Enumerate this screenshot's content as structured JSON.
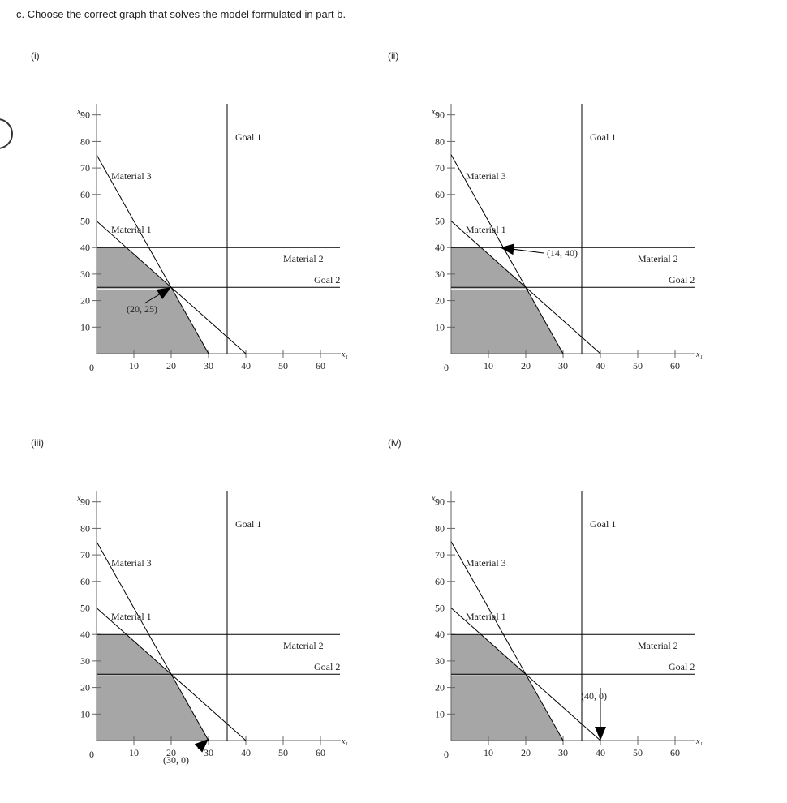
{
  "question": "c. Choose the correct graph that solves the model formulated in part b.",
  "axes": {
    "x_label": "x₁",
    "y_label": "x₂",
    "x_ticks": [
      "10",
      "20",
      "30",
      "40",
      "50",
      "60"
    ],
    "y_ticks": [
      "10",
      "20",
      "30",
      "40",
      "50",
      "60",
      "70",
      "80",
      "90"
    ],
    "origin_label": "0"
  },
  "line_labels": {
    "goal1": "Goal 1",
    "goal2": "Goal 2",
    "material1": "Material 1",
    "material2": "Material 2",
    "material3": "Material 3"
  },
  "options": [
    {
      "label": "(i)",
      "point_label": "(20, 25)"
    },
    {
      "label": "(ii)",
      "point_label": "(14, 40)"
    },
    {
      "label": "(iii)",
      "point_label": "(30, 0)"
    },
    {
      "label": "(iv)",
      "point_label": "(40, 0)"
    }
  ],
  "colors": {
    "shade": "#a6a6a6",
    "line": "#000000",
    "text": "#222222"
  },
  "chart_data": [
    {
      "type": "line",
      "title": "(i)",
      "xlabel": "x1",
      "ylabel": "x2",
      "xlim": [
        0,
        65
      ],
      "ylim": [
        0,
        90
      ],
      "lines": [
        {
          "name": "Goal 1",
          "kind": "vertical",
          "x": 35
        },
        {
          "name": "Goal 2",
          "kind": "horizontal",
          "y": 25
        },
        {
          "name": "Material 2",
          "kind": "horizontal",
          "y": 40
        },
        {
          "name": "Material 1",
          "kind": "segment",
          "from": [
            0,
            50
          ],
          "to": [
            40,
            0
          ]
        },
        {
          "name": "Material 3",
          "kind": "segment",
          "from": [
            0,
            75
          ],
          "to": [
            30,
            0
          ]
        }
      ],
      "feasible_region": [
        [
          0,
          0
        ],
        [
          0,
          40
        ],
        [
          8,
          40
        ],
        [
          20,
          25
        ],
        [
          30,
          0
        ]
      ],
      "marked_point": [
        20,
        25
      ]
    },
    {
      "type": "line",
      "title": "(ii)",
      "xlabel": "x1",
      "ylabel": "x2",
      "xlim": [
        0,
        65
      ],
      "ylim": [
        0,
        90
      ],
      "lines": [
        {
          "name": "Goal 1",
          "kind": "vertical",
          "x": 35
        },
        {
          "name": "Goal 2",
          "kind": "horizontal",
          "y": 25
        },
        {
          "name": "Material 2",
          "kind": "horizontal",
          "y": 40
        },
        {
          "name": "Material 1",
          "kind": "segment",
          "from": [
            0,
            50
          ],
          "to": [
            40,
            0
          ]
        },
        {
          "name": "Material 3",
          "kind": "segment",
          "from": [
            0,
            75
          ],
          "to": [
            30,
            0
          ]
        }
      ],
      "feasible_region": [
        [
          0,
          0
        ],
        [
          0,
          40
        ],
        [
          8,
          40
        ],
        [
          20,
          25
        ],
        [
          30,
          0
        ]
      ],
      "marked_point": [
        14,
        40
      ]
    },
    {
      "type": "line",
      "title": "(iii)",
      "xlabel": "x1",
      "ylabel": "x2",
      "xlim": [
        0,
        65
      ],
      "ylim": [
        0,
        90
      ],
      "lines": [
        {
          "name": "Goal 1",
          "kind": "vertical",
          "x": 35
        },
        {
          "name": "Goal 2",
          "kind": "horizontal",
          "y": 25
        },
        {
          "name": "Material 2",
          "kind": "horizontal",
          "y": 40
        },
        {
          "name": "Material 1",
          "kind": "segment",
          "from": [
            0,
            50
          ],
          "to": [
            40,
            0
          ]
        },
        {
          "name": "Material 3",
          "kind": "segment",
          "from": [
            0,
            75
          ],
          "to": [
            30,
            0
          ]
        }
      ],
      "feasible_region": [
        [
          0,
          0
        ],
        [
          0,
          40
        ],
        [
          8,
          40
        ],
        [
          20,
          25
        ],
        [
          30,
          0
        ]
      ],
      "marked_point": [
        30,
        0
      ]
    },
    {
      "type": "line",
      "title": "(iv)",
      "xlabel": "x1",
      "ylabel": "x2",
      "xlim": [
        0,
        65
      ],
      "ylim": [
        0,
        90
      ],
      "lines": [
        {
          "name": "Goal 1",
          "kind": "vertical",
          "x": 35
        },
        {
          "name": "Goal 2",
          "kind": "horizontal",
          "y": 25
        },
        {
          "name": "Material 2",
          "kind": "horizontal",
          "y": 40
        },
        {
          "name": "Material 1",
          "kind": "segment",
          "from": [
            0,
            50
          ],
          "to": [
            40,
            0
          ]
        },
        {
          "name": "Material 3",
          "kind": "segment",
          "from": [
            0,
            75
          ],
          "to": [
            30,
            0
          ]
        }
      ],
      "feasible_region": [
        [
          0,
          0
        ],
        [
          0,
          40
        ],
        [
          8,
          40
        ],
        [
          20,
          25
        ],
        [
          30,
          0
        ]
      ],
      "marked_point": [
        40,
        0
      ]
    }
  ]
}
